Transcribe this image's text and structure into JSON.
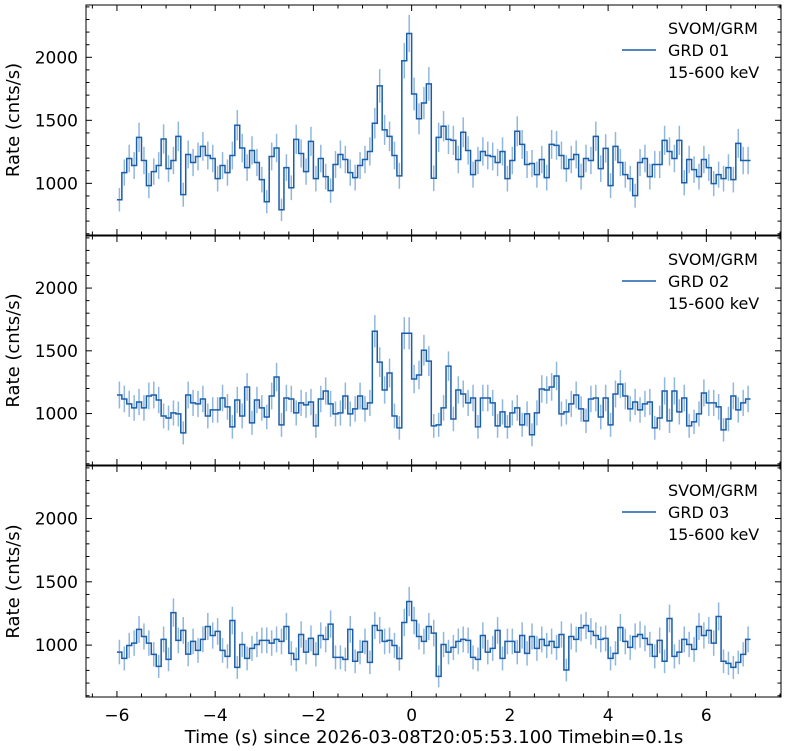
{
  "chart_data": {
    "type": "line",
    "style": "step histogram with error bars",
    "xlabel": "Time (s) since 2026-03-08T20:05:53.100 Timebin=0.1s",
    "ylabel": "Rate (cnts/s)",
    "xlim": [
      -6.63,
      7.52
    ],
    "ylim": [
      590,
      2415
    ],
    "x_start": -6.0,
    "bin_width": 0.1,
    "x_ticks": [
      -6,
      -4,
      -2,
      0,
      2,
      4,
      6
    ],
    "x_tick_labels": [
      "−6",
      "−4",
      "−2",
      "0",
      "2",
      "4",
      "6"
    ],
    "y_ticks": [
      1000,
      1500,
      2000
    ],
    "y_tick_labels": [
      "1000",
      "1500",
      "2000"
    ],
    "line_color": "#1a5ea8",
    "errorbar_color": "#7eaad8",
    "panels": [
      {
        "legend": {
          "line1": "SVOM/GRM",
          "line2": "GRD 01",
          "line3": "15-600 keV"
        },
        "values": [
          870,
          1085,
          1197,
          1141,
          1365,
          1181,
          982,
          1093,
          1141,
          1352,
          1117,
          1181,
          1373,
          910,
          1229,
          1165,
          1213,
          1293,
          1221,
          1197,
          1037,
          1141,
          1085,
          1221,
          1461,
          1280,
          1125,
          1261,
          1165,
          1029,
          854,
          1213,
          1280,
          790,
          1125,
          965,
          1349,
          1237,
          1093,
          1333,
          1037,
          1197,
          1053,
          942,
          1149,
          1229,
          1189,
          1085,
          1045,
          1141,
          1189,
          1253,
          1477,
          1773,
          1424,
          1373,
          1221,
          1059,
          1973,
          2189,
          1709,
          1512,
          1637,
          1789,
          1040,
          1365,
          1453,
          1349,
          1341,
          1189,
          1405,
          1261,
          1069,
          1181,
          1253,
          1221,
          1213,
          1165,
          1253,
          1037,
          1181,
          1413,
          1309,
          1149,
          1157,
          1069,
          1189,
          1045,
          1309,
          1301,
          1221,
          1117,
          1189,
          1229,
          1053,
          1197,
          1181,
          1373,
          1117,
          1277,
          982,
          1293,
          1165,
          1069,
          1037,
          902,
          1165,
          1197,
          1053,
          1149,
          1149,
          1341,
          1253,
          1197,
          1341,
          1005,
          1189,
          1109,
          1053,
          1189,
          1125,
          998,
          1069,
          1037,
          1125,
          1029,
          1317,
          1181,
          1181
        ]
      },
      {
        "legend": {
          "line1": "SVOM/GRM",
          "line2": "GRD 02",
          "line3": "15-600 keV"
        },
        "values": [
          1148,
          1116,
          1077,
          1045,
          1092,
          1045,
          1140,
          1148,
          1108,
          981,
          965,
          1005,
          997,
          846,
          1148,
          1085,
          1077,
          1116,
          981,
          1029,
          1029,
          1124,
          1053,
          894,
          1108,
          981,
          1212,
          926,
          1108,
          1045,
          973,
          1140,
          1291,
          910,
          1124,
          1116,
          1005,
          1085,
          1069,
          1092,
          902,
          1116,
          1180,
          1077,
          997,
          1005,
          1140,
          997,
          1037,
          1140,
          1037,
          1085,
          1656,
          1410,
          1188,
          1323,
          981,
          886,
          1640,
          1640,
          1275,
          1307,
          1505,
          1418,
          902,
          910,
          1045,
          1378,
          957,
          1188,
          1156,
          1085,
          1124,
          894,
          1124,
          1124,
          1085,
          902,
          1013,
          894,
          1005,
          1045,
          910,
          997,
          831,
          1005,
          1196,
          1188,
          1212,
          1299,
          997,
          1013,
          1077,
          1148,
          1037,
          942,
          1116,
          1124,
          973,
          1124,
          910,
          1156,
          1235,
          1140,
          1037,
          1092,
          1029,
          1077,
          1092,
          886,
          965,
          1180,
          942,
          1180,
          1013,
          1124,
          902,
          934,
          997,
          1164,
          1085,
          1085,
          1053,
          870,
          957,
          1140,
          1029,
          1085,
          1116
        ]
      },
      {
        "legend": {
          "line1": "SVOM/GRM",
          "line2": "GRD 03",
          "line3": "15-600 keV"
        },
        "values": [
          945,
          895,
          997,
          1016,
          1124,
          1068,
          1016,
          927,
          832,
          1045,
          887,
          1257,
          1037,
          1116,
          929,
          1029,
          958,
          1045,
          1147,
          1076,
          1108,
          958,
          911,
          1194,
          824,
          1005,
          895,
          974,
          1005,
          1037,
          1037,
          1016,
          1045,
          1029,
          1147,
          935,
          887,
          1084,
          945,
          1053,
          927,
          1076,
          1045,
          1166,
          903,
          903,
          887,
          1124,
          872,
          945,
          1029,
          864,
          1155,
          1116,
          1029,
          1037,
          997,
          893,
          1179,
          1344,
          1194,
          1068,
          1029,
          1147,
          1095,
          753,
          1005,
          945,
          982,
          1029,
          1045,
          1037,
          903,
          887,
          1076,
          945,
          974,
          1116,
          895,
          1029,
          1029,
          945,
          1076,
          935,
          1068,
          974,
          1045,
          997,
          1029,
          982,
          1084,
          803,
          1068,
          1045,
          1137,
          1155,
          1108,
          1076,
          1045,
          1053,
          895,
          935,
          1139,
          1029,
          982,
          1068,
          1084,
          1053,
          1005,
          911,
          1037,
          872,
          1210,
          911,
          945,
          1045,
          1005,
          966,
          1147,
          1076,
          1116,
          1016,
          1226,
          872,
          856,
          824,
          864,
          927,
          1045
        ]
      }
    ]
  }
}
